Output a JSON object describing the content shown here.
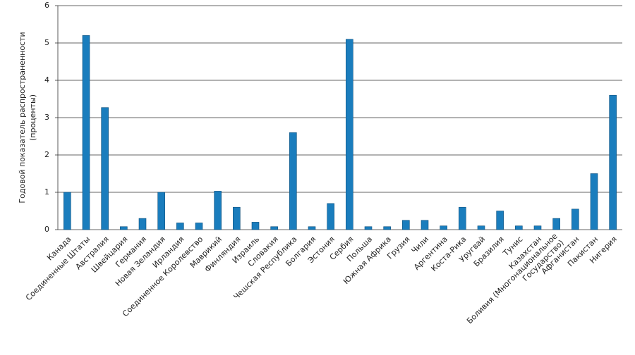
{
  "chart_data": {
    "type": "bar",
    "ylabel": [
      "Годовой показатель распространенности",
      "(проценты)"
    ],
    "categories": [
      "Канада",
      "Соединенные Штаты",
      "Австралия",
      "Швейцария",
      "Германия",
      "Новая Зеландия",
      "Ирландия",
      "Соединенное Королевство",
      "Маврикий",
      "Финляндия",
      "Израиль",
      "Словакия",
      "Чешская Республика",
      "Болгария",
      "Эстония",
      "Сербия",
      "Польша",
      "Южная Африка",
      "Грузия",
      "Чили",
      "Аргентина",
      "Коста-Рика",
      "Уругвай",
      "Бразилия",
      "Тунис",
      "Казахстан",
      "Боливия (Многонациональное Государство)",
      "Афганистан",
      "Пакистан",
      "Нигерия"
    ],
    "values": [
      1.0,
      5.2,
      3.27,
      0.08,
      0.3,
      1.0,
      0.18,
      0.18,
      1.03,
      0.6,
      0.2,
      0.08,
      2.6,
      0.08,
      0.7,
      5.1,
      0.08,
      0.08,
      0.25,
      0.25,
      0.1,
      0.6,
      0.1,
      0.5,
      0.1,
      0.1,
      0.3,
      0.55,
      1.5,
      3.6
    ],
    "color": "#1a7dbd",
    "ylim": [
      0,
      6
    ],
    "yticks": [
      0,
      1,
      2,
      3,
      4,
      5,
      6
    ],
    "grid": true
  }
}
